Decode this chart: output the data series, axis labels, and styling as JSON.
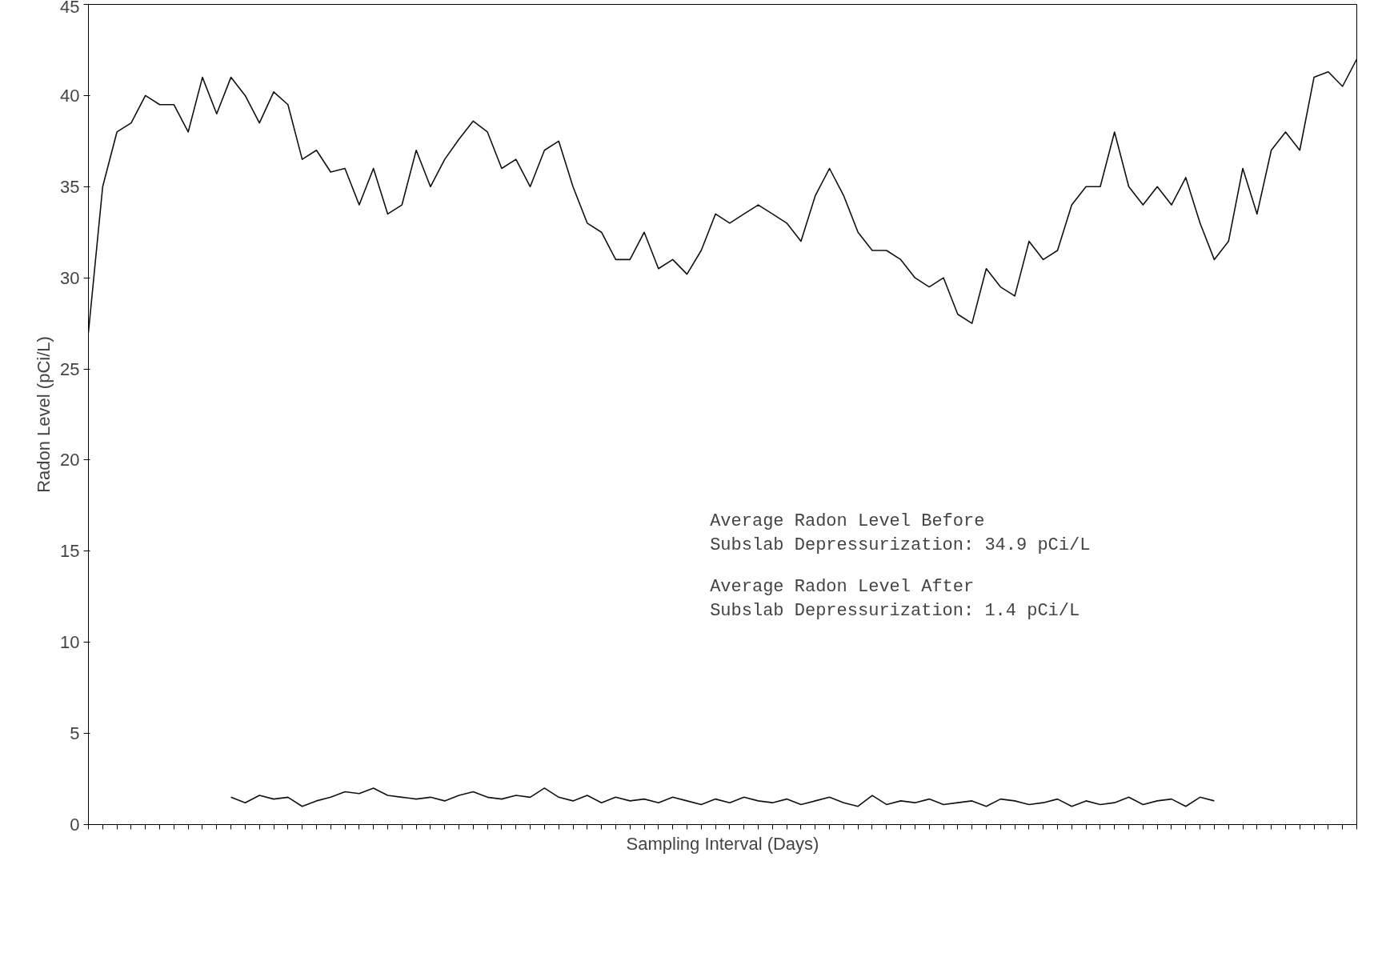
{
  "chart_data": {
    "type": "line",
    "xlabel": "Sampling Interval (Days)",
    "ylabel": "Radon Level (pCi/L)",
    "categories": [
      null,
      null,
      null,
      null,
      null,
      null,
      null,
      null,
      null,
      null,
      null,
      null,
      null,
      null,
      null,
      null,
      null,
      null,
      null,
      null,
      null,
      null,
      null,
      null,
      null,
      null,
      null,
      null,
      null,
      null,
      null,
      null,
      null,
      null,
      null,
      null,
      null,
      null,
      null,
      null,
      null,
      null,
      null,
      null,
      null,
      null,
      null,
      null,
      null,
      null,
      null,
      null,
      null,
      null,
      null,
      null,
      null,
      null,
      null,
      null,
      null,
      null,
      null,
      null,
      null,
      null,
      null,
      null,
      null,
      null,
      null,
      null,
      null,
      null,
      null,
      null,
      null,
      null,
      null,
      null,
      null,
      null,
      null,
      null,
      null,
      null,
      null,
      null,
      null,
      null
    ],
    "series": [
      {
        "color": "#111111",
        "values": [
          27,
          35,
          38,
          38.5,
          40,
          39.5,
          39.5,
          38,
          41,
          39,
          41,
          40,
          38.5,
          40.2,
          39.5,
          36.5,
          37,
          35.8,
          36,
          34,
          36,
          33.5,
          34,
          37,
          35,
          36.5,
          37.6,
          38.6,
          38,
          36,
          36.5,
          35,
          37,
          37.5,
          35,
          33,
          32.5,
          31,
          31,
          32.5,
          30.5,
          31,
          30.2,
          31.5,
          33.5,
          33,
          33.5,
          34,
          33.5,
          33,
          32,
          34.5,
          36,
          34.5,
          32.5,
          31.5,
          31.5,
          31,
          30,
          29.5,
          30,
          28,
          27.5,
          30.5,
          29.5,
          29,
          32,
          31,
          31.5,
          34,
          35,
          35,
          38,
          35,
          34,
          35,
          34,
          35.5,
          33,
          31,
          32,
          36,
          33.5,
          37,
          38,
          37,
          41,
          41.3,
          40.5,
          42
        ]
      },
      {
        "color": "#111111",
        "values": [
          null,
          null,
          null,
          null,
          null,
          null,
          null,
          null,
          null,
          null,
          1.5,
          1.2,
          1.6,
          1.4,
          1.5,
          1.0,
          1.3,
          1.5,
          1.8,
          1.7,
          2.0,
          1.6,
          1.5,
          1.4,
          1.5,
          1.3,
          1.6,
          1.8,
          1.5,
          1.4,
          1.6,
          1.5,
          2.0,
          1.5,
          1.3,
          1.6,
          1.2,
          1.5,
          1.3,
          1.4,
          1.2,
          1.5,
          1.3,
          1.1,
          1.4,
          1.2,
          1.5,
          1.3,
          1.2,
          1.4,
          1.1,
          1.3,
          1.5,
          1.2,
          1.0,
          1.6,
          1.1,
          1.3,
          1.2,
          1.4,
          1.1,
          1.2,
          1.3,
          1.0,
          1.4,
          1.3,
          1.1,
          1.2,
          1.4,
          1.0,
          1.3,
          1.1,
          1.2,
          1.5,
          1.1,
          1.3,
          1.4,
          1.0,
          1.5,
          1.3,
          null,
          null,
          null,
          null,
          null,
          null,
          null,
          null,
          null,
          null
        ]
      }
    ],
    "ylim": [
      0,
      45
    ],
    "yticks": [
      0,
      5,
      10,
      15,
      20,
      25,
      30,
      35,
      40,
      45
    ],
    "tick_labels": "y",
    "grid": false,
    "line_style": "solid",
    "marker": "none",
    "annotations": [
      "Average Radon Level Before\nSubslab Depressurization:  34.9 pCi/L",
      "Average Radon Level After\nSubslab Depressurization:   1.4 pCi/L"
    ]
  }
}
